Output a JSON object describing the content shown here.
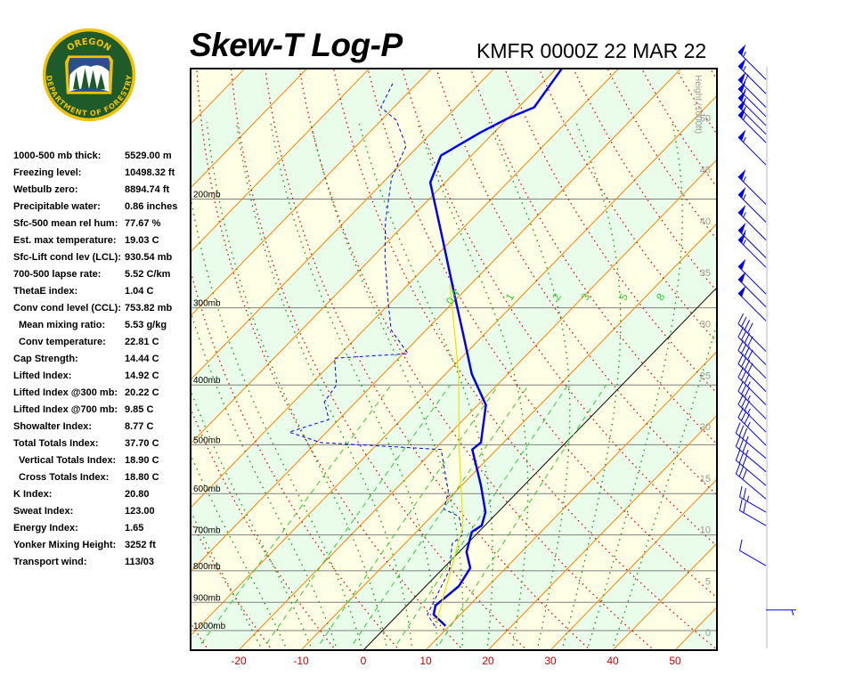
{
  "logo": {
    "top_text": "OREGON",
    "bottom_text": "DEPARTMENT OF FORESTRY",
    "colors": {
      "ring": "#f2c200",
      "field": "#1e5a2a"
    }
  },
  "header": {
    "title": "Skew-T Log-P",
    "subtitle": "KMFR 0000Z 22 MAR 22"
  },
  "stats": [
    {
      "label": "1000-500 mb thick:",
      "value": "5529.00 m"
    },
    {
      "label": "Freezing level:",
      "value": "10498.32 ft"
    },
    {
      "label": "Wetbulb zero:",
      "value": "8894.74 ft"
    },
    {
      "label": "Precipitable water:",
      "value": "0.86 inches"
    },
    {
      "label": "Sfc-500 mean rel hum:",
      "value": "77.67 %"
    },
    {
      "label": "Est. max temperature:",
      "value": "19.03 C"
    },
    {
      "label": "Sfc-Lift cond lev (LCL):",
      "value": "930.54 mb"
    },
    {
      "label": "700-500 lapse rate:",
      "value": "5.52 C/km"
    },
    {
      "label": "ThetaE index:",
      "value": "1.04 C"
    },
    {
      "label": "Conv cond level (CCL):",
      "value": "753.82 mb"
    },
    {
      "label": "Mean mixing ratio:",
      "value": "5.53 g/kg",
      "indent": true
    },
    {
      "label": "Conv temperature:",
      "value": "22.81 C",
      "indent": true
    },
    {
      "label": "Cap Strength:",
      "value": "14.44 C"
    },
    {
      "label": "Lifted Index:",
      "value": "14.92 C"
    },
    {
      "label": "Lifted Index @300 mb:",
      "value": "20.22 C"
    },
    {
      "label": "Lifted Index @700 mb:",
      "value": "9.85 C"
    },
    {
      "label": "Showalter Index:",
      "value": "8.77 C"
    },
    {
      "label": "Total Totals Index:",
      "value": "37.70 C"
    },
    {
      "label": "Vertical Totals Index:",
      "value": "18.90 C",
      "indent": true
    },
    {
      "label": "Cross Totals Index:",
      "value": "18.80 C",
      "indent": true
    },
    {
      "label": "K Index:",
      "value": "20.80"
    },
    {
      "label": "Sweat Index:",
      "value": "123.00"
    },
    {
      "label": "Energy Index:",
      "value": "1.65"
    },
    {
      "label": "Yonker Mixing Height:",
      "value": "3252 ft"
    },
    {
      "label": "Transport wind:",
      "value": "113/03"
    }
  ],
  "chart_data": {
    "type": "line",
    "subtype": "skew-t log-p",
    "x_axis": {
      "label": "",
      "ticks": [
        -20,
        -10,
        0,
        10,
        20,
        30,
        40,
        50
      ],
      "range_at_1000mb": [
        -28,
        56
      ],
      "tick_color": "#cc0000"
    },
    "y_axis": {
      "scale": "log",
      "range_mb": [
        1050,
        123
      ],
      "isobars": [
        {
          "p": 200,
          "label": "200mb"
        },
        {
          "p": 300,
          "label": "300mb"
        },
        {
          "p": 400,
          "label": "400mb"
        },
        {
          "p": 500,
          "label": "500mb"
        },
        {
          "p": 600,
          "label": "600mb"
        },
        {
          "p": 700,
          "label": "700mb"
        },
        {
          "p": 800,
          "label": "800mb"
        },
        {
          "p": 900,
          "label": "900mb"
        },
        {
          "p": 1000,
          "label": "1000mb"
        }
      ]
    },
    "height_axis": {
      "label": "Height (1000ft)",
      "ticks": [
        0,
        5,
        10,
        15,
        20,
        25,
        30,
        35,
        40,
        45,
        50
      ]
    },
    "mixing_ratio_labels": [
      "0.4",
      "1",
      "2",
      "3",
      "5",
      "8"
    ],
    "mixing_ratios": [
      0.4,
      1,
      2,
      3,
      5,
      8
    ],
    "colors": {
      "temperature": "#0000ee",
      "dewpoint": "#0000ee",
      "parcel": "#e6e600",
      "isotherm": "#ff8000",
      "zero_isotherm": "#000000",
      "dry_adiabat": "#ee0000",
      "moist_adiabat": "#009900",
      "mixing_ratio": "#33cc33",
      "band_a": "#ffffe6",
      "band_b": "#eafdea",
      "wind": "#0000ee"
    },
    "series": [
      {
        "kind": "temperature",
        "points": [
          [
            983,
            9.4
          ],
          [
            942,
            5.7
          ],
          [
            911,
            4.6
          ],
          [
            847,
            5.3
          ],
          [
            792,
            4.3
          ],
          [
            746,
            1.2
          ],
          [
            692,
            -1.1
          ],
          [
            676,
            -0.5
          ],
          [
            643,
            -2.0
          ],
          [
            582,
            -6.9
          ],
          [
            509,
            -13.9
          ],
          [
            496,
            -13.6
          ],
          [
            431,
            -18.7
          ],
          [
            384,
            -25.8
          ],
          [
            331,
            -33.4
          ],
          [
            285,
            -41.1
          ],
          [
            233,
            -51.4
          ],
          [
            188,
            -62.4
          ],
          [
            170,
            -64.9
          ],
          [
            156,
            -62.2
          ],
          [
            148,
            -60.0
          ],
          [
            142,
            -57.5
          ],
          [
            123,
            -59.1
          ]
        ]
      },
      {
        "kind": "dewpoint",
        "points": [
          [
            983,
            7.7
          ],
          [
            942,
            4.7
          ],
          [
            799,
            1.3
          ],
          [
            723,
            -2.4
          ],
          [
            699,
            -2.1
          ],
          [
            653,
            -5.6
          ],
          [
            636,
            -9.1
          ],
          [
            595,
            -11.2
          ],
          [
            509,
            -18.9
          ],
          [
            496,
            -39.3
          ],
          [
            477,
            -46.0
          ],
          [
            455,
            -41.6
          ],
          [
            426,
            -45.1
          ],
          [
            400,
            -45.8
          ],
          [
            362,
            -50.3
          ],
          [
            356,
            -39.2
          ],
          [
            326,
            -45.6
          ],
          [
            294,
            -50.4
          ],
          [
            249,
            -57.9
          ],
          [
            218,
            -63.4
          ],
          [
            185,
            -69.3
          ],
          [
            164,
            -72.0
          ],
          [
            149,
            -77.6
          ],
          [
            142,
            -82.1
          ],
          [
            130,
            -83.9
          ]
        ]
      },
      {
        "kind": "parcel",
        "points": [
          [
            974,
            7.5
          ],
          [
            676,
            -3.5
          ],
          [
            501,
            -16.7
          ],
          [
            384,
            -27.9
          ],
          [
            275,
            -43.3
          ]
        ]
      }
    ],
    "wind_barbs": [
      {
        "p": 128,
        "dir": 315,
        "spd": 55
      },
      {
        "p": 135,
        "dir": 315,
        "spd": 55
      },
      {
        "p": 142,
        "dir": 315,
        "spd": 60
      },
      {
        "p": 147,
        "dir": 315,
        "spd": 55
      },
      {
        "p": 152,
        "dir": 315,
        "spd": 55
      },
      {
        "p": 157,
        "dir": 315,
        "spd": 55
      },
      {
        "p": 162,
        "dir": 315,
        "spd": 55
      },
      {
        "p": 176,
        "dir": 315,
        "spd": 55
      },
      {
        "p": 204,
        "dir": 315,
        "spd": 55
      },
      {
        "p": 218,
        "dir": 315,
        "spd": 55
      },
      {
        "p": 233,
        "dir": 315,
        "spd": 55
      },
      {
        "p": 249,
        "dir": 315,
        "spd": 55
      },
      {
        "p": 258,
        "dir": 315,
        "spd": 55
      },
      {
        "p": 285,
        "dir": 315,
        "spd": 50
      },
      {
        "p": 299,
        "dir": 315,
        "spd": 50
      },
      {
        "p": 315,
        "dir": 315,
        "spd": 50
      },
      {
        "p": 353,
        "dir": 315,
        "spd": 40
      },
      {
        "p": 371,
        "dir": 315,
        "spd": 40
      },
      {
        "p": 390,
        "dir": 315,
        "spd": 40
      },
      {
        "p": 410,
        "dir": 315,
        "spd": 40
      },
      {
        "p": 431,
        "dir": 315,
        "spd": 35
      },
      {
        "p": 454,
        "dir": 315,
        "spd": 35
      },
      {
        "p": 477,
        "dir": 315,
        "spd": 35
      },
      {
        "p": 501,
        "dir": 315,
        "spd": 35
      },
      {
        "p": 526,
        "dir": 310,
        "spd": 35
      },
      {
        "p": 553,
        "dir": 310,
        "spd": 35
      },
      {
        "p": 582,
        "dir": 310,
        "spd": 30
      },
      {
        "p": 612,
        "dir": 310,
        "spd": 30
      },
      {
        "p": 643,
        "dir": 300,
        "spd": 25
      },
      {
        "p": 676,
        "dir": 300,
        "spd": 20
      },
      {
        "p": 785,
        "dir": 300,
        "spd": 10
      },
      {
        "p": 926,
        "dir": 90,
        "spd": 5
      }
    ]
  }
}
